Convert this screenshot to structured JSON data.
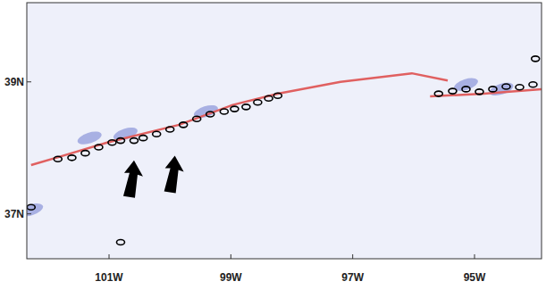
{
  "chart_data": {
    "type": "field_map",
    "xlim": [
      -102.35,
      -93.9
    ],
    "ylim": [
      36.32,
      40.2
    ],
    "xticks": [
      {
        "value": -101,
        "label": "101W"
      },
      {
        "value": -99,
        "label": "99W"
      },
      {
        "value": -97,
        "label": "97W"
      },
      {
        "value": -95,
        "label": "95W"
      }
    ],
    "yticks": [
      {
        "value": 39,
        "label": "39N"
      },
      {
        "value": 37,
        "label": "37N"
      }
    ],
    "red_lines": [
      {
        "lon": [
          -102.28,
          -101.76,
          -101.03,
          -99.85,
          -98.97,
          -98.23,
          -97.2,
          -96.03,
          -95.44
        ],
        "lat": [
          37.74,
          37.88,
          38.08,
          38.35,
          38.65,
          38.82,
          39.0,
          39.13,
          39.02
        ]
      },
      {
        "lon": [
          -95.73,
          -94.85,
          -93.9
        ],
        "lat": [
          38.78,
          38.82,
          38.89
        ]
      }
    ],
    "blue_patches": {
      "lon": [
        -101.32,
        -100.73,
        -99.41,
        -95.14,
        -94.56,
        -102.28
      ],
      "lat": [
        38.15,
        38.21,
        38.55,
        38.96,
        38.89,
        37.06
      ]
    },
    "contours": {
      "lon": [
        -101.84,
        -101.61,
        -101.39,
        -101.17,
        -100.95,
        -100.81,
        -100.59,
        -100.44,
        -100.22,
        -100.0,
        -99.78,
        -99.56,
        -99.34,
        -99.11,
        -98.94,
        -98.75,
        -98.56,
        -98.38,
        -98.23,
        -95.59,
        -95.36,
        -95.14,
        -94.92,
        -94.7,
        -94.48,
        -94.26,
        -94.04,
        -94.0,
        -102.28,
        -100.81
      ],
      "lat": [
        37.83,
        37.85,
        37.92,
        38.01,
        38.08,
        38.11,
        38.11,
        38.15,
        38.21,
        38.28,
        38.35,
        38.44,
        38.51,
        38.55,
        38.59,
        38.62,
        38.69,
        38.75,
        38.79,
        38.82,
        38.86,
        38.89,
        38.85,
        38.89,
        38.93,
        38.92,
        38.96,
        39.35,
        37.1,
        36.57
      ]
    },
    "arrows": {
      "lon": [
        -100.59,
        -99.92
      ],
      "lat": [
        37.81,
        37.88
      ]
    }
  }
}
